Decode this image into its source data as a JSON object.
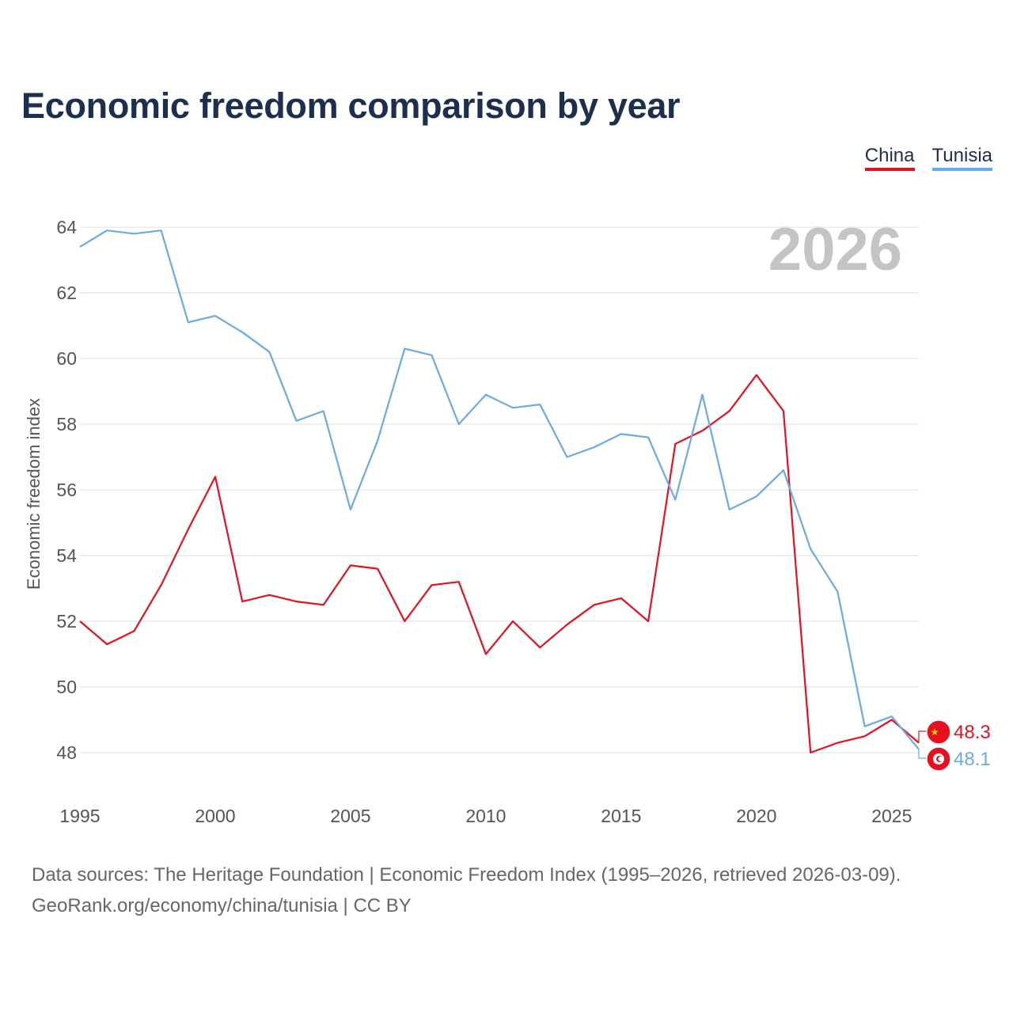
{
  "title": "Economic freedom comparison by year",
  "legend": {
    "china": "China",
    "tunisia": "Tunisia"
  },
  "source": {
    "line1": "Data sources: The Heritage Foundation | Economic Freedom Index (1995–2026, retrieved 2026-03-09).",
    "line2": "GeoRank.org/economy/china/tunisia | CC BY"
  },
  "colors": {
    "china": "#e8101e",
    "tunisia": "#6aaae6",
    "title": "#1d2f4e",
    "grid": "#e4e4e4",
    "year_watermark": "#c4c4c4"
  },
  "chart_data": {
    "type": "line",
    "title": "Economic freedom comparison by year",
    "xlabel": "",
    "ylabel": "Economic freedom index",
    "xlim": [
      1995,
      2026
    ],
    "ylim": [
      47,
      65
    ],
    "xticks": [
      1995,
      2000,
      2005,
      2010,
      2015,
      2020,
      2025
    ],
    "yticks": [
      48,
      50,
      52,
      54,
      56,
      58,
      60,
      62,
      64
    ],
    "grid": true,
    "legend_position": "top-right",
    "year_label": "2026",
    "x": [
      1995,
      1996,
      1997,
      1998,
      1999,
      2000,
      2001,
      2002,
      2003,
      2004,
      2005,
      2006,
      2007,
      2008,
      2009,
      2010,
      2011,
      2012,
      2013,
      2014,
      2015,
      2016,
      2017,
      2018,
      2019,
      2020,
      2021,
      2022,
      2023,
      2024,
      2025,
      2026
    ],
    "series": [
      {
        "name": "China",
        "color": "#e8101e",
        "end_label": "48.3",
        "flag_icon": "china-flag-icon",
        "values": [
          52.0,
          51.3,
          51.7,
          53.1,
          54.8,
          56.4,
          52.6,
          52.8,
          52.6,
          52.5,
          53.7,
          53.6,
          52.0,
          53.1,
          53.2,
          51.0,
          52.0,
          51.2,
          51.9,
          52.5,
          52.7,
          52.0,
          57.4,
          57.8,
          58.4,
          59.5,
          58.4,
          48.0,
          48.3,
          48.5,
          49.0,
          48.3
        ]
      },
      {
        "name": "Tunisia",
        "color": "#6aaae6",
        "end_label": "48.1",
        "flag_icon": "tunisia-flag-icon",
        "values": [
          63.4,
          63.9,
          63.8,
          63.9,
          61.1,
          61.3,
          60.8,
          60.2,
          58.1,
          58.4,
          55.4,
          57.5,
          60.3,
          60.1,
          58.0,
          58.9,
          58.5,
          58.6,
          57.0,
          57.3,
          57.7,
          57.6,
          55.7,
          58.9,
          55.4,
          55.8,
          56.6,
          54.2,
          52.9,
          48.8,
          49.1,
          48.1
        ]
      }
    ]
  }
}
